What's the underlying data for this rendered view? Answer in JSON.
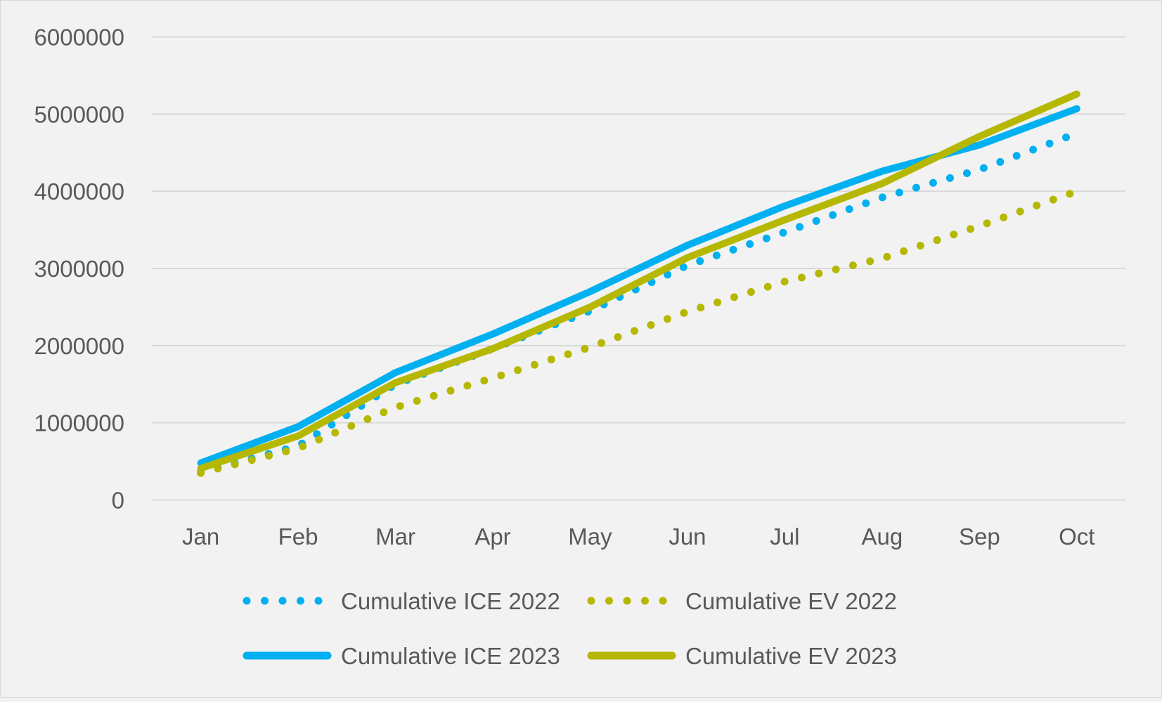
{
  "chart_data": {
    "type": "line",
    "title": "",
    "xlabel": "",
    "ylabel": "",
    "categories": [
      "Jan",
      "Feb",
      "Mar",
      "Apr",
      "May",
      "Jun",
      "Jul",
      "Aug",
      "Sep",
      "Oct"
    ],
    "ylim": [
      0,
      6000000
    ],
    "yticks": [
      "0",
      "1000000",
      "2000000",
      "3000000",
      "4000000",
      "5000000",
      "6000000"
    ],
    "grid": true,
    "legend_position": "bottom",
    "series": [
      {
        "name": "Cumulative ICE 2022",
        "color": "#00b0f0",
        "style": "dotted",
        "values": [
          360000,
          700000,
          1500000,
          1960000,
          2450000,
          3040000,
          3470000,
          3920000,
          4280000,
          4750000
        ]
      },
      {
        "name": "Cumulative EV 2022",
        "color": "#b5b700",
        "style": "dotted",
        "values": [
          350000,
          670000,
          1200000,
          1580000,
          1980000,
          2440000,
          2830000,
          3130000,
          3550000,
          4000000
        ]
      },
      {
        "name": "Cumulative ICE 2023",
        "color": "#00b0f0",
        "style": "solid",
        "values": [
          480000,
          950000,
          1650000,
          2150000,
          2700000,
          3300000,
          3810000,
          4260000,
          4600000,
          5070000
        ]
      },
      {
        "name": "Cumulative EV 2023",
        "color": "#b5b700",
        "style": "solid",
        "values": [
          410000,
          830000,
          1520000,
          1960000,
          2500000,
          3140000,
          3630000,
          4100000,
          4710000,
          5260000
        ]
      }
    ]
  }
}
